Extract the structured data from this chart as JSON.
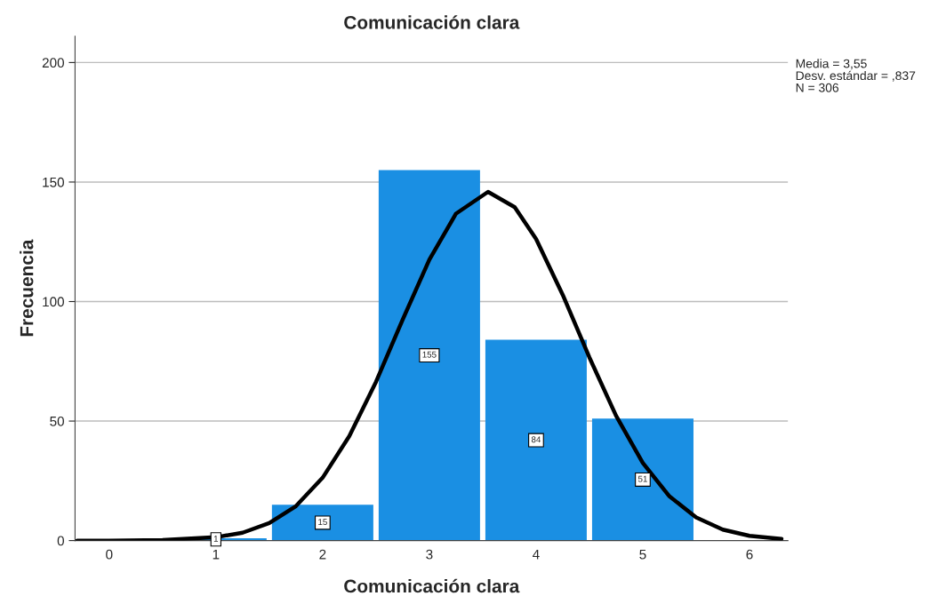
{
  "chart_data": {
    "type": "histogram",
    "title": "Comunicación clara",
    "xlabel": "Comunicación clara",
    "ylabel": "Frecuencia",
    "bins": [
      0.5,
      1.5,
      2.5,
      3.5,
      4.5,
      5.5
    ],
    "series": [
      {
        "color": "#1a8fe3",
        "values": [
          1,
          15,
          155,
          84,
          51
        ],
        "value_labels": [
          "1",
          "15",
          "155",
          "84",
          "51"
        ]
      },
      {
        "type": "line",
        "color": "#000000",
        "x": [
          -0.3,
          0,
          0.5,
          1,
          1.25,
          1.5,
          1.75,
          2,
          2.25,
          2.5,
          2.75,
          3,
          3.25,
          3.55,
          3.8,
          4,
          4.25,
          4.5,
          4.75,
          5,
          5.25,
          5.5,
          5.75,
          6,
          6.3
        ],
        "values": [
          0,
          0,
          0.2,
          1.4,
          3.3,
          7.3,
          14.4,
          26.3,
          43.7,
          66.4,
          92.4,
          117.5,
          136.8,
          145.9,
          139.5,
          126.2,
          102.8,
          76.6,
          52.2,
          32.5,
          18.5,
          9.7,
          4.6,
          2.0,
          0.7
        ]
      }
    ],
    "annotations": [
      "Media = 3,55",
      "Desv. estándar = ,837",
      "N = 306"
    ],
    "xlim": [
      -0.32,
      6.36
    ],
    "xticks": [
      0,
      1,
      2,
      3,
      4,
      5,
      6
    ],
    "ylim": [
      0,
      211
    ],
    "yticks": [
      0,
      50,
      100,
      150,
      200
    ],
    "grid": "y"
  }
}
